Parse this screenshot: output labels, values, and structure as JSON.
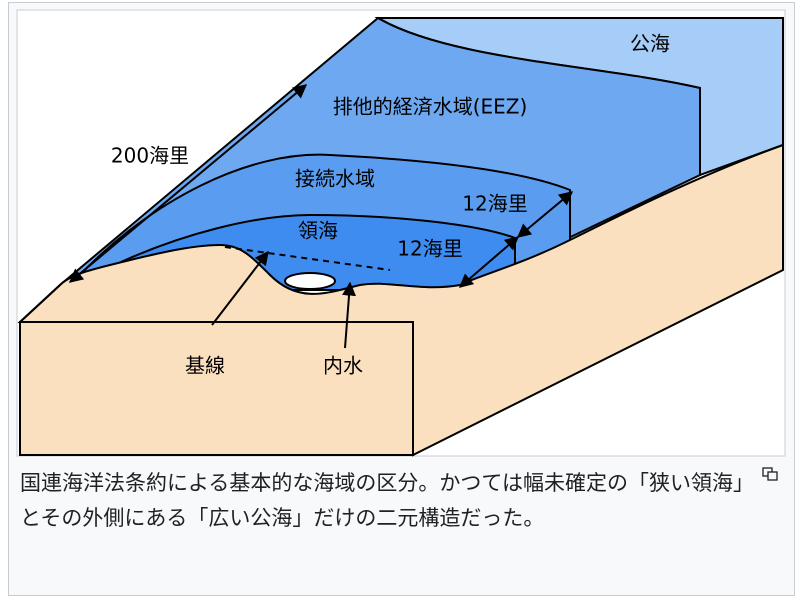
{
  "diagram": {
    "labels": {
      "high_seas": "公海",
      "eez": "排他的経済水域(EEZ)",
      "eez_width": "200海里",
      "contiguous_zone": "接続水域",
      "contiguous_width": "12海里",
      "territorial_sea": "領海",
      "territorial_width": "12海里",
      "baseline": "基線",
      "internal_waters": "内水"
    }
  },
  "caption": "国連海洋法条約による基本的な海域の区分。かつては幅未確定の「狭い領海」とその外側にある「広い公海」だけの二元構造だった。"
}
